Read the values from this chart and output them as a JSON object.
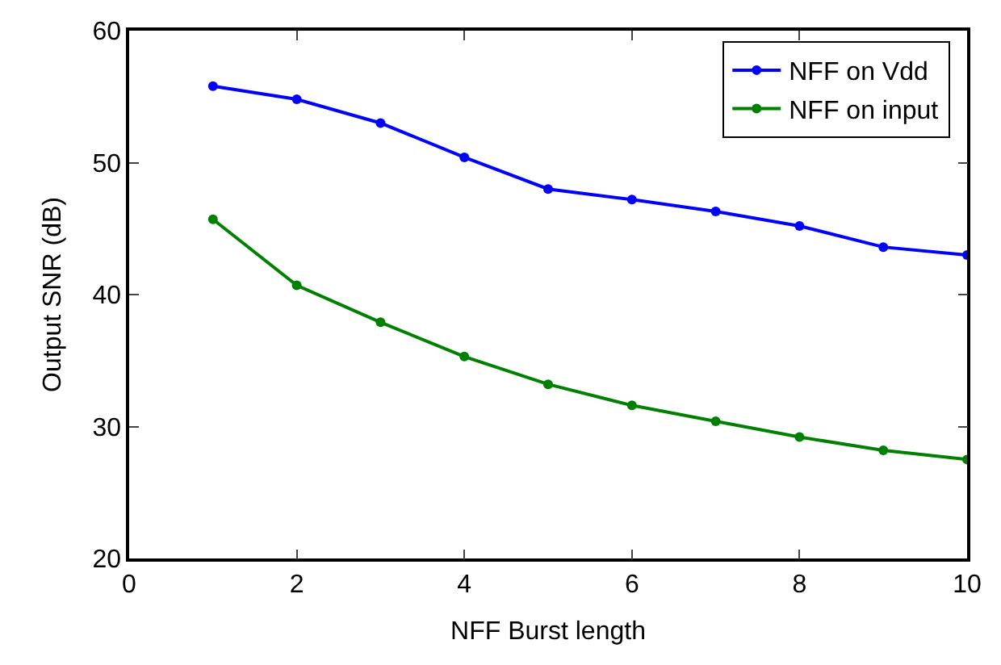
{
  "chart_data": {
    "type": "line",
    "xlabel": "NFF Burst length",
    "ylabel": "Output SNR (dB)",
    "x": [
      1,
      2,
      3,
      4,
      5,
      6,
      7,
      8,
      9,
      10
    ],
    "series": [
      {
        "name": "NFF on Vdd",
        "color": "#0000ff",
        "values": [
          55.8,
          54.8,
          53.0,
          50.4,
          48.0,
          47.2,
          46.3,
          45.2,
          43.6,
          43.0
        ]
      },
      {
        "name": "NFF on input",
        "color": "#008000",
        "values": [
          45.7,
          40.7,
          37.9,
          35.3,
          33.2,
          31.6,
          30.4,
          29.2,
          28.2,
          27.5
        ]
      }
    ],
    "xlim": [
      0,
      10
    ],
    "xticks": [
      0,
      2,
      4,
      6,
      8,
      10
    ],
    "ylim": [
      20,
      60
    ],
    "yticks": [
      20,
      30,
      40,
      50,
      60
    ],
    "legend": "top right",
    "marker": "circle",
    "line_style": "solid"
  }
}
